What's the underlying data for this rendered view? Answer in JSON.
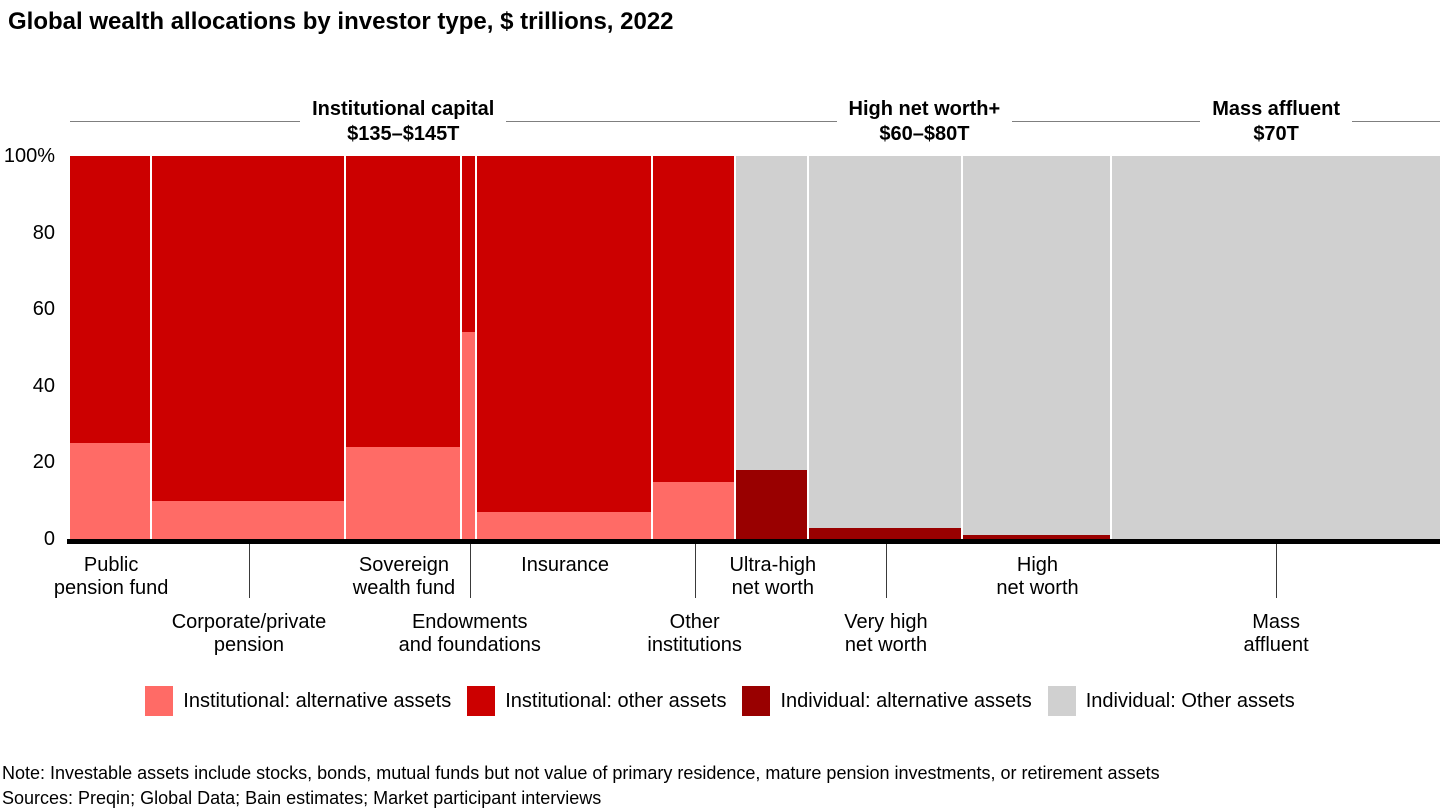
{
  "title": "Global wealth allocations by investor type, $ trillions, 2022",
  "note": "Note: Investable assets include stocks, bonds, mutual funds but not value of primary residence, mature pension investments, or retirement assets",
  "sources": "Sources: Preqin; Global Data; Bain estimates; Market participant interviews",
  "chart_data": {
    "type": "marimekko_stacked_bar",
    "y_axis": {
      "min": 0,
      "max": 100,
      "unit": "%",
      "ticks": [
        "100%",
        "80",
        "60",
        "40",
        "20",
        "0"
      ]
    },
    "grid": false,
    "groups": [
      {
        "label": "Institutional capital",
        "value": "$135–$145T"
      },
      {
        "label": "High net worth+",
        "value": "$60–$80T"
      },
      {
        "label": "Mass affluent",
        "value": "$70T"
      }
    ],
    "legend": [
      {
        "id": "inst_alt",
        "label": "Institutional: alternative assets",
        "color": "#ff6b66"
      },
      {
        "id": "inst_other",
        "label": "Institutional: other assets",
        "color": "#cc0000"
      },
      {
        "id": "ind_alt",
        "label": "Individual: alternative assets",
        "color": "#990000"
      },
      {
        "id": "ind_other",
        "label": "Individual: Other assets",
        "color": "#d0d0d0"
      }
    ],
    "columns": [
      {
        "label": "Public\npension fund",
        "group": 0,
        "investor": "institutional",
        "label_row": 1,
        "width_pct": 6.0,
        "alternative_pct": 25,
        "other_pct": 75
      },
      {
        "label": "Corporate/private\npension",
        "group": 0,
        "investor": "institutional",
        "label_row": 2,
        "width_pct": 14.1,
        "alternative_pct": 10,
        "other_pct": 90
      },
      {
        "label": "Sovereign\nwealth fund",
        "group": 0,
        "investor": "institutional",
        "label_row": 1,
        "width_pct": 8.5,
        "alternative_pct": 24,
        "other_pct": 76
      },
      {
        "label": "Endowments\nand foundations",
        "group": 0,
        "investor": "institutional",
        "label_row": 2,
        "width_pct": 1.1,
        "alternative_pct": 54,
        "other_pct": 46
      },
      {
        "label": "Insurance",
        "group": 0,
        "investor": "institutional",
        "label_row": 1,
        "width_pct": 12.8,
        "alternative_pct": 7,
        "other_pct": 93
      },
      {
        "label": "Other\ninstitutions",
        "group": 0,
        "investor": "institutional",
        "label_row": 2,
        "width_pct": 6.1,
        "alternative_pct": 15,
        "other_pct": 85
      },
      {
        "label": "Ultra-high\nnet worth",
        "group": 1,
        "investor": "individual",
        "label_row": 1,
        "width_pct": 5.3,
        "alternative_pct": 18,
        "other_pct": 82
      },
      {
        "label": "Very high\nnet worth",
        "group": 1,
        "investor": "individual",
        "label_row": 2,
        "width_pct": 11.2,
        "alternative_pct": 3,
        "other_pct": 97
      },
      {
        "label": "High\nnet worth",
        "group": 1,
        "investor": "individual",
        "label_row": 1,
        "width_pct": 10.9,
        "alternative_pct": 1,
        "other_pct": 99
      },
      {
        "label": "Mass\naffluent",
        "group": 2,
        "investor": "individual",
        "label_row": 2,
        "width_pct": 23.9,
        "alternative_pct": 0,
        "other_pct": 100
      }
    ]
  }
}
